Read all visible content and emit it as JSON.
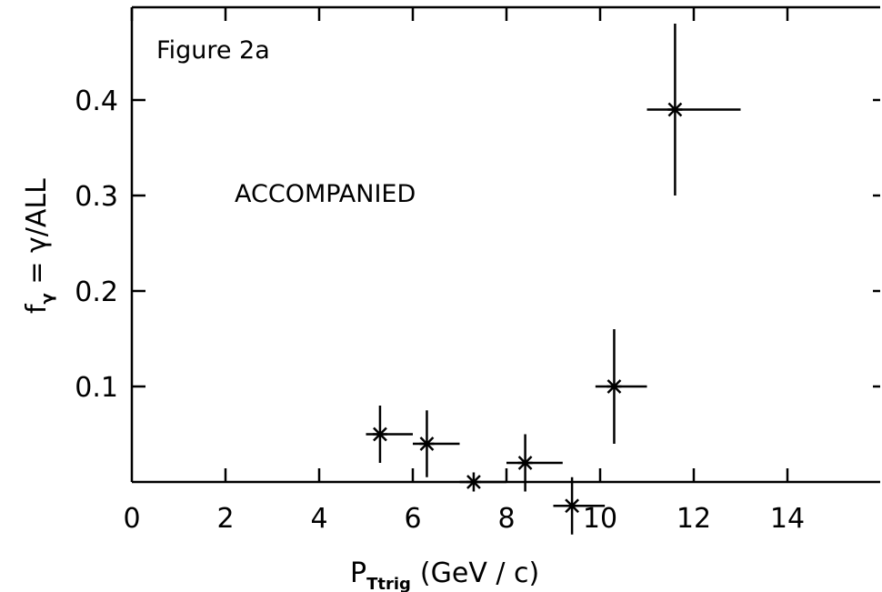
{
  "chart_data": {
    "type": "scatter",
    "title": "",
    "xlabel": {
      "main": "P",
      "sub": "Ttrig",
      "unit": "(GeV / c)"
    },
    "ylabel": {
      "main": "f",
      "sub": "γ",
      "rest": " = γ/ALL"
    },
    "annotations": [
      "Figure 2a",
      "ACCOMPANIED"
    ],
    "xlim": [
      0,
      16
    ],
    "ylim": [
      -0.03,
      0.49
    ],
    "x_ticks": [
      0,
      2,
      4,
      6,
      8,
      10,
      12,
      14
    ],
    "x_tick_labels": [
      "0",
      "2",
      "4",
      "6",
      "8",
      "10",
      "12",
      "14"
    ],
    "y_ticks": [
      0.1,
      0.2,
      0.3,
      0.4
    ],
    "y_tick_labels": [
      "0.1",
      "0.2",
      "0.3",
      "0.4"
    ],
    "grid": false,
    "marker": "asterisk",
    "points": [
      {
        "x": 5.3,
        "y": 0.05,
        "xerr_lo": 0.3,
        "xerr_hi": 0.7,
        "yerr": 0.03
      },
      {
        "x": 6.3,
        "y": 0.04,
        "xerr_lo": 0.3,
        "xerr_hi": 0.7,
        "yerr": 0.035
      },
      {
        "x": 7.3,
        "y": 0.0,
        "xerr_lo": 0.3,
        "xerr_hi": 0.7,
        "yerr": 0.01
      },
      {
        "x": 8.4,
        "y": 0.02,
        "xerr_lo": 0.4,
        "xerr_hi": 0.8,
        "yerr": 0.03
      },
      {
        "x": 9.4,
        "y": -0.025,
        "xerr_lo": 0.4,
        "xerr_hi": 0.7,
        "yerr": 0.03
      },
      {
        "x": 10.3,
        "y": 0.1,
        "xerr_lo": 0.4,
        "xerr_hi": 0.7,
        "yerr": 0.06
      },
      {
        "x": 11.6,
        "y": 0.39,
        "xerr_lo": 0.6,
        "xerr_hi": 1.4,
        "yerr": 0.09
      }
    ]
  }
}
